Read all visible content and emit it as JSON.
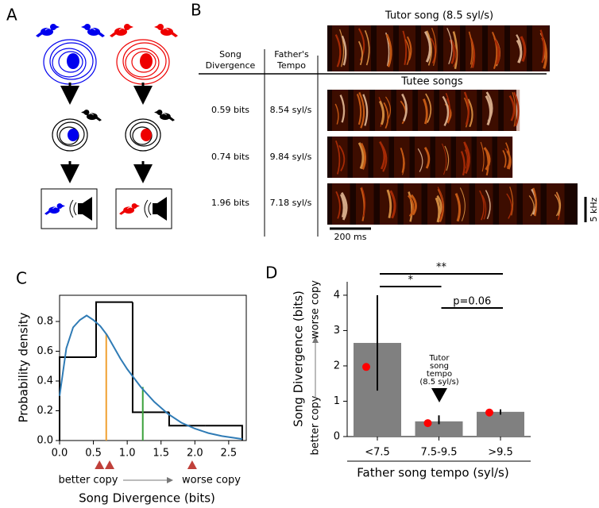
{
  "panel_labels": [
    "A",
    "B",
    "C",
    "D"
  ],
  "panel_b": {
    "tutor_title": "Tutor song (8.5 syl/s)",
    "col_headers": [
      [
        "Song",
        "Divergence"
      ],
      [
        "Father's",
        "Tempo"
      ]
    ],
    "tutee_title": "Tutee songs",
    "rows": [
      [
        "0.59 bits",
        "8.54 syl/s"
      ],
      [
        "0.74 bits",
        "9.84 syl/s"
      ],
      [
        "1.96 bits",
        "7.18 syl/s"
      ]
    ],
    "time_scale": "200 ms",
    "freq_scale": "5 kHz"
  },
  "chart_data": [
    {
      "type": "histogram",
      "xlabel": "Song Divergence (bits)",
      "ylabel": "Probability density",
      "bins": [
        0,
        0.54,
        1.08,
        1.62,
        2.16,
        2.7
      ],
      "counts": [
        0.56,
        0.93,
        0.19,
        0.1,
        0.1
      ],
      "color": "#000000",
      "curve": {
        "x": [
          0,
          0.1,
          0.2,
          0.3,
          0.4,
          0.5,
          0.6,
          0.7,
          0.8,
          0.9,
          1.0,
          1.2,
          1.4,
          1.6,
          1.8,
          2.0,
          2.2,
          2.4,
          2.7
        ],
        "y": [
          0.3,
          0.62,
          0.76,
          0.81,
          0.84,
          0.81,
          0.77,
          0.71,
          0.63,
          0.55,
          0.48,
          0.36,
          0.26,
          0.18,
          0.12,
          0.08,
          0.05,
          0.03,
          0.01
        ],
        "color": "#2f7bb5"
      },
      "vlines": [
        {
          "x": 0.69,
          "height": 0.72,
          "color": "#f0a030"
        },
        {
          "x": 1.23,
          "height": 0.36,
          "color": "#3aa03a"
        }
      ],
      "markers": {
        "values": [
          0.59,
          0.74,
          1.96
        ],
        "color": "#c0403a"
      },
      "annotations": [
        "better copy",
        "worse copy"
      ],
      "xlim": [
        0,
        2.76
      ],
      "ylim": [
        0,
        0.976
      ],
      "xticks": [
        {
          "value": 0,
          "label": "0.0"
        },
        {
          "value": 0.5,
          "label": "0.5"
        },
        {
          "value": 1,
          "label": "1.0"
        },
        {
          "value": 1.5,
          "label": "1.5"
        },
        {
          "value": 2,
          "label": "2.0"
        },
        {
          "value": 2.5,
          "label": "2.5"
        }
      ],
      "yticks": [
        {
          "value": 0,
          "label": "0.0"
        },
        {
          "value": 0.2,
          "label": "0.2"
        },
        {
          "value": 0.4,
          "label": "0.4"
        },
        {
          "value": 0.6,
          "label": "0.6"
        },
        {
          "value": 0.8,
          "label": "0.8"
        }
      ]
    },
    {
      "type": "bar",
      "xlabel": "Father song tempo (syl/s)",
      "ylabel": "Song Divergence (bits)",
      "categories": [
        "<7.5",
        "7.5-9.5",
        ">9.5"
      ],
      "values": [
        2.65,
        0.43,
        0.7
      ],
      "color": "#808080",
      "error_low": [
        1.3,
        0.35,
        0.62
      ],
      "error_high": [
        4.0,
        0.6,
        0.77
      ],
      "medians": [
        1.97,
        0.38,
        0.68
      ],
      "median_color": "#ff0000",
      "ylim": [
        0,
        4.38
      ],
      "yticks": [
        0,
        1,
        2,
        3,
        4
      ],
      "annotations": [
        "better copy",
        "worse copy"
      ],
      "significance_labels": [
        "*",
        "**",
        "p=0.06"
      ],
      "tutor_note": [
        "Tutor",
        "song",
        "tempo",
        "(8.5 syl/s)"
      ]
    }
  ]
}
